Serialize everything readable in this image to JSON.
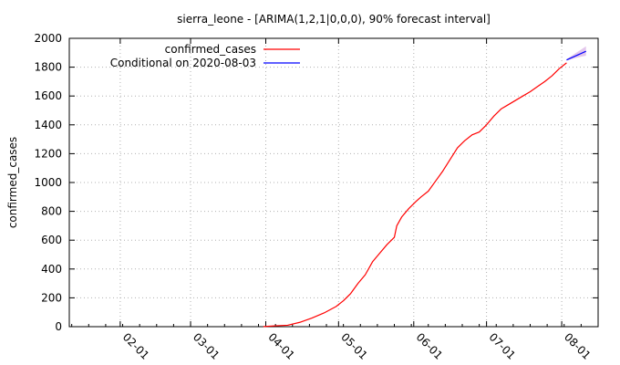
{
  "chart_data": {
    "type": "line",
    "title": "sierra_leone -  [ARIMA(1,2,1|0,0,0), 90% forecast interval]",
    "xlabel": "",
    "ylabel": "confirmed_cases",
    "ylim": [
      0,
      2000
    ],
    "yticks": [
      0,
      200,
      400,
      600,
      800,
      1000,
      1200,
      1400,
      1600,
      1800,
      2000
    ],
    "x_start": "2020-01-11",
    "x_end": "2020-08-16",
    "xticks": [
      {
        "date": "2020-02-01",
        "label": "02-01"
      },
      {
        "date": "2020-03-01",
        "label": "03-01"
      },
      {
        "date": "2020-04-01",
        "label": "04-01"
      },
      {
        "date": "2020-05-01",
        "label": "05-01"
      },
      {
        "date": "2020-06-01",
        "label": "06-01"
      },
      {
        "date": "2020-07-01",
        "label": "07-01"
      },
      {
        "date": "2020-08-01",
        "label": "08-01"
      }
    ],
    "grid": true,
    "legend_position": "top-right",
    "series": [
      {
        "name": "confirmed_cases",
        "color": "#ff0000",
        "points": [
          [
            "2020-03-31",
            1
          ],
          [
            "2020-04-05",
            6
          ],
          [
            "2020-04-10",
            10
          ],
          [
            "2020-04-15",
            30
          ],
          [
            "2020-04-20",
            60
          ],
          [
            "2020-04-25",
            95
          ],
          [
            "2020-04-30",
            140
          ],
          [
            "2020-05-03",
            180
          ],
          [
            "2020-05-06",
            230
          ],
          [
            "2020-05-09",
            300
          ],
          [
            "2020-05-12",
            360
          ],
          [
            "2020-05-15",
            450
          ],
          [
            "2020-05-18",
            510
          ],
          [
            "2020-05-21",
            570
          ],
          [
            "2020-05-24",
            620
          ],
          [
            "2020-05-25",
            700
          ],
          [
            "2020-05-27",
            760
          ],
          [
            "2020-05-30",
            820
          ],
          [
            "2020-06-02",
            870
          ],
          [
            "2020-06-04",
            900
          ],
          [
            "2020-06-07",
            940
          ],
          [
            "2020-06-10",
            1010
          ],
          [
            "2020-06-13",
            1080
          ],
          [
            "2020-06-16",
            1160
          ],
          [
            "2020-06-19",
            1240
          ],
          [
            "2020-06-22",
            1290
          ],
          [
            "2020-06-25",
            1330
          ],
          [
            "2020-06-28",
            1350
          ],
          [
            "2020-07-01",
            1400
          ],
          [
            "2020-07-04",
            1460
          ],
          [
            "2020-07-07",
            1510
          ],
          [
            "2020-07-10",
            1540
          ],
          [
            "2020-07-13",
            1570
          ],
          [
            "2020-07-16",
            1600
          ],
          [
            "2020-07-19",
            1630
          ],
          [
            "2020-07-22",
            1665
          ],
          [
            "2020-07-25",
            1700
          ],
          [
            "2020-07-28",
            1740
          ],
          [
            "2020-07-31",
            1790
          ],
          [
            "2020-08-03",
            1830
          ]
        ]
      },
      {
        "name": "Conditional on 2020-08-03",
        "color": "#0000ff",
        "points": [
          [
            "2020-08-03",
            1850
          ],
          [
            "2020-08-07",
            1880
          ],
          [
            "2020-08-11",
            1910
          ]
        ],
        "interval_lower": [
          1845,
          1865,
          1880
        ],
        "interval_upper": [
          1855,
          1900,
          1945
        ]
      }
    ]
  }
}
